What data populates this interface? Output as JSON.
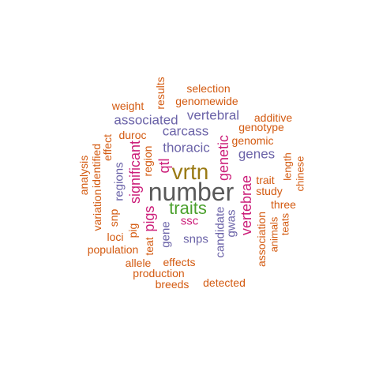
{
  "words": [
    {
      "text": "number",
      "color": "#595959"
    },
    {
      "text": "vrtn",
      "color": "#9a7a14"
    },
    {
      "text": "traits",
      "color": "#4aa02c"
    },
    {
      "text": "ssc",
      "color": "#cc1f7a"
    },
    {
      "text": "significant",
      "color": "#cc1f7a"
    },
    {
      "text": "genetic",
      "color": "#cc1f7a"
    },
    {
      "text": "vertebrae",
      "color": "#cc1f7a"
    },
    {
      "text": "pigs",
      "color": "#cc1f7a"
    },
    {
      "text": "qtl",
      "color": "#cc1f7a"
    },
    {
      "text": "associated",
      "color": "#6b63a8"
    },
    {
      "text": "vertebral",
      "color": "#6b63a8"
    },
    {
      "text": "carcass",
      "color": "#6b63a8"
    },
    {
      "text": "thoracic",
      "color": "#6b63a8"
    },
    {
      "text": "genes",
      "color": "#6b63a8"
    },
    {
      "text": "regions",
      "color": "#6b63a8"
    },
    {
      "text": "gene",
      "color": "#6b63a8"
    },
    {
      "text": "snps",
      "color": "#6b63a8"
    },
    {
      "text": "candidate",
      "color": "#6b63a8"
    },
    {
      "text": "gwas",
      "color": "#6b63a8"
    },
    {
      "text": "selection",
      "color": "#d35a10"
    },
    {
      "text": "genomewide",
      "color": "#d35a10"
    },
    {
      "text": "results",
      "color": "#d35a10"
    },
    {
      "text": "weight",
      "color": "#d35a10"
    },
    {
      "text": "additive",
      "color": "#d35a10"
    },
    {
      "text": "genotype",
      "color": "#d35a10"
    },
    {
      "text": "genomic",
      "color": "#d35a10"
    },
    {
      "text": "duroc",
      "color": "#d35a10"
    },
    {
      "text": "effect",
      "color": "#d35a10"
    },
    {
      "text": "identified",
      "color": "#d35a10"
    },
    {
      "text": "analysis",
      "color": "#d35a10"
    },
    {
      "text": "region",
      "color": "#d35a10"
    },
    {
      "text": "length",
      "color": "#d35a10"
    },
    {
      "text": "chinese",
      "color": "#d35a10"
    },
    {
      "text": "trait",
      "color": "#d35a10"
    },
    {
      "text": "study",
      "color": "#d35a10"
    },
    {
      "text": "three",
      "color": "#d35a10"
    },
    {
      "text": "variation",
      "color": "#d35a10"
    },
    {
      "text": "snp",
      "color": "#d35a10"
    },
    {
      "text": "pig",
      "color": "#d35a10"
    },
    {
      "text": "loci",
      "color": "#d35a10"
    },
    {
      "text": "teat",
      "color": "#d35a10"
    },
    {
      "text": "population",
      "color": "#d35a10"
    },
    {
      "text": "allele",
      "color": "#d35a10"
    },
    {
      "text": "effects",
      "color": "#d35a10"
    },
    {
      "text": "production",
      "color": "#d35a10"
    },
    {
      "text": "breeds",
      "color": "#d35a10"
    },
    {
      "text": "detected",
      "color": "#d35a10"
    },
    {
      "text": "association",
      "color": "#d35a10"
    },
    {
      "text": "animals",
      "color": "#d35a10"
    },
    {
      "text": "teats",
      "color": "#d35a10"
    }
  ]
}
